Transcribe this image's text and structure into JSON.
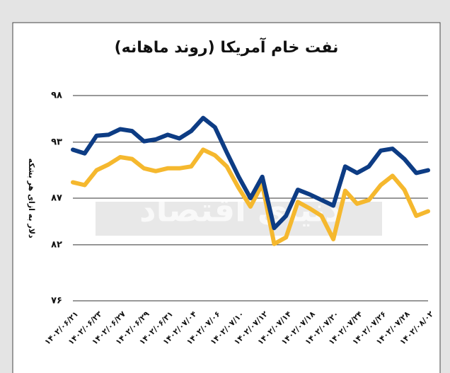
{
  "chart_data": {
    "type": "line",
    "title": "نفت خام آمریکا (روند ماهانه)",
    "y_label": "دلار به ازای هر بشکه",
    "watermark": "دنیای اقتصاد",
    "categories": [
      "۱۴۰۲/۰۶/۲۱",
      null,
      "۱۴۰۲/۰۶/۲۳",
      null,
      "۱۴۰۲/۰۶/۲۷",
      null,
      "۱۴۰۲/۰۶/۲۹",
      null,
      "۱۴۰۲/۰۶/۳۱",
      null,
      "۱۴۰۲/۰۷/۰۴",
      null,
      "۱۴۰۲/۰۷/۰۶",
      null,
      "۱۴۰۲/۰۷/۱۰",
      null,
      "۱۴۰۲/۰۷/۱۲",
      null,
      "۱۴۰۲/۰۷/۱۴",
      null,
      "۱۴۰۲/۰۷/۱۸",
      null,
      "۱۴۰۲/۰۷/۲۰",
      null,
      "۱۴۰۲/۰۷/۲۴",
      null,
      "۱۴۰۲/۰۷/۲۶",
      null,
      "۱۴۰۲/۰۷/۲۸",
      null,
      "۱۴۰۲/۰۸/۰۲"
    ],
    "series": [
      {
        "color": "#0d3c84",
        "values": [
          92.2,
          91.8,
          93.7,
          93.8,
          94.4,
          94.2,
          93.1,
          93.3,
          93.8,
          93.4,
          94.2,
          95.6,
          94.6,
          91.9,
          89.3,
          87.0,
          89.3,
          83.8,
          85.1,
          87.9,
          87.4,
          86.8,
          86.2,
          90.4,
          89.7,
          90.4,
          92.1,
          92.3,
          91.2,
          89.7,
          90.0
        ]
      },
      {
        "color": "#f5b82e",
        "values": [
          88.7,
          88.4,
          90.0,
          90.6,
          91.4,
          91.2,
          90.2,
          89.9,
          90.2,
          90.2,
          90.4,
          92.2,
          91.6,
          90.4,
          88.1,
          86.1,
          88.5,
          82.1,
          82.8,
          86.6,
          85.9,
          85.1,
          82.6,
          87.8,
          86.4,
          86.8,
          88.4,
          89.4,
          87.9,
          85.1,
          85.6
        ]
      }
    ],
    "ylim": [
      76,
      98
    ],
    "yticks": [
      {
        "value": 98,
        "label": "۹۸"
      },
      {
        "value": 93,
        "label": "۹۳"
      },
      {
        "value": 87,
        "label": "۸۷"
      },
      {
        "value": 82,
        "label": "۸۲"
      },
      {
        "value": 76,
        "label": "۷۶"
      }
    ],
    "grid": true
  }
}
